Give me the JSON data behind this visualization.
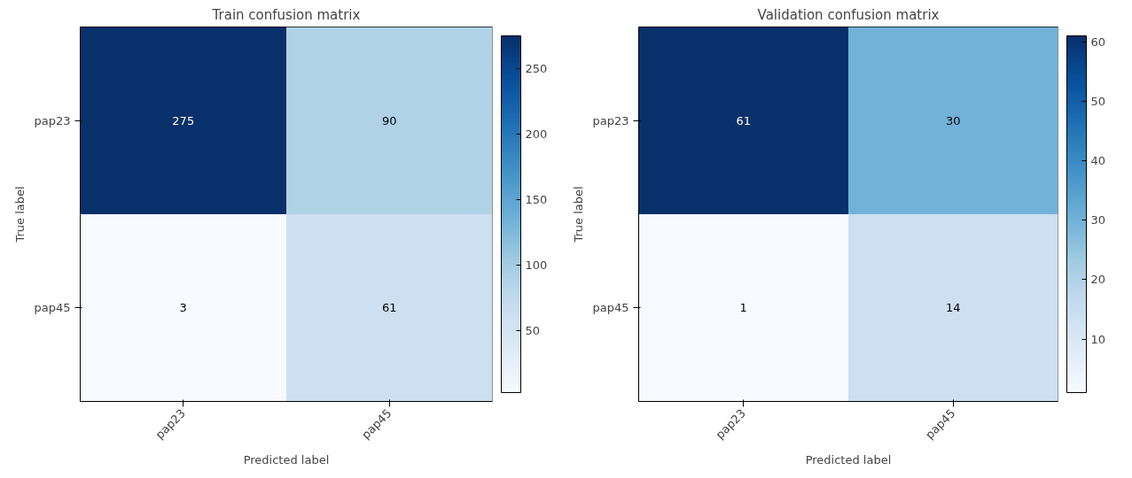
{
  "chart_data": [
    {
      "type": "heatmap",
      "title": "Train confusion matrix",
      "xlabel": "Predicted label",
      "ylabel": "True label",
      "categories": [
        "pap23",
        "pap45"
      ],
      "y_categories": [
        "pap23",
        "pap45"
      ],
      "cells": [
        [
          275,
          90
        ],
        [
          3,
          61
        ]
      ],
      "clim": [
        3,
        275
      ],
      "cticks": [
        50,
        100,
        150,
        200,
        250
      ],
      "data_labels": true
    },
    {
      "type": "heatmap",
      "title": "Validation confusion matrix",
      "xlabel": "Predicted label",
      "ylabel": "True label",
      "categories": [
        "pap23",
        "pap45"
      ],
      "y_categories": [
        "pap23",
        "pap45"
      ],
      "cells": [
        [
          61,
          30
        ],
        [
          1,
          14
        ]
      ],
      "clim": [
        1,
        61
      ],
      "cticks": [
        10,
        20,
        30,
        40,
        50,
        60
      ],
      "data_labels": true
    }
  ]
}
